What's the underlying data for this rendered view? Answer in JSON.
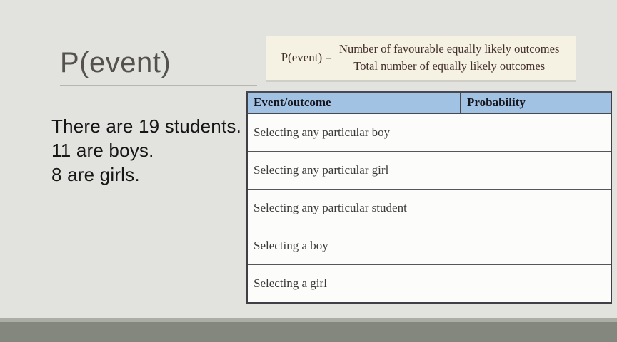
{
  "slide": {
    "title": "P(event)",
    "info_lines": {
      "line1": "There are 19 students.",
      "line2": "11 are boys.",
      "line3": "8 are girls."
    }
  },
  "formula": {
    "lhs": "P(event) =",
    "numerator": "Number of favourable equally likely outcomes",
    "denominator": "Total number of equally likely outcomes"
  },
  "table": {
    "headers": [
      "Event/outcome",
      "Probability"
    ],
    "rows": [
      {
        "event": "Selecting any particular boy",
        "probability": ""
      },
      {
        "event": "Selecting any particular girl",
        "probability": ""
      },
      {
        "event": "Selecting any particular student",
        "probability": ""
      },
      {
        "event": "Selecting a boy",
        "probability": ""
      },
      {
        "event": "Selecting a girl",
        "probability": ""
      }
    ]
  },
  "colors": {
    "slide_bg": "#e2e3de",
    "table_header_bg": "#a2c2e4",
    "formula_box_bg": "#f5f1e3",
    "formula_text": "#43302a",
    "title_text": "#55514c",
    "bottom_bar": "#84877e",
    "bottom_bar_light": "#abaea5"
  }
}
